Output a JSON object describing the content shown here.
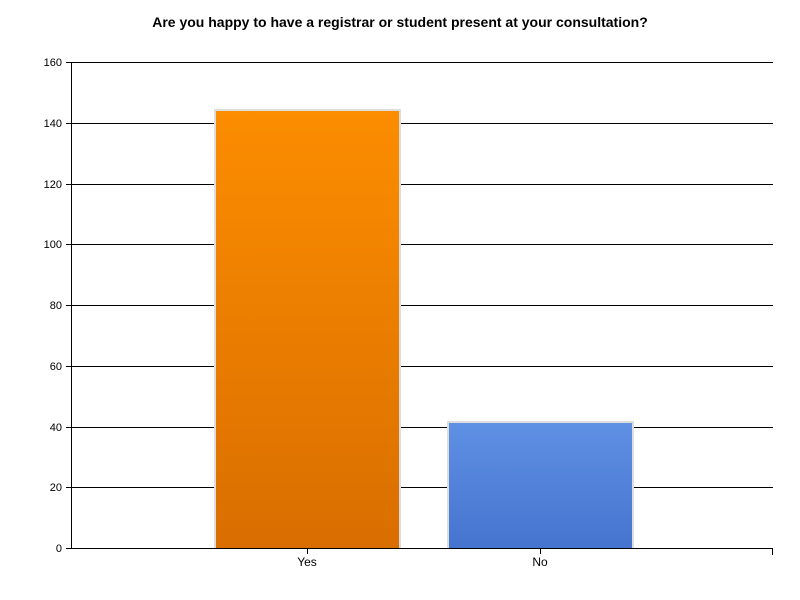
{
  "chart_data": {
    "type": "bar",
    "title": "Are you happy to have a registrar or student present at your consultation?",
    "categories": [
      "Yes",
      "No"
    ],
    "values": [
      145,
      42
    ],
    "series": [
      {
        "name": "Yes",
        "values": [
          145
        ]
      },
      {
        "name": "No",
        "values": [
          42
        ]
      }
    ],
    "xlabel": "",
    "ylabel": "",
    "ylim": [
      0,
      160
    ],
    "ytick_interval": 20,
    "yticks": [
      0,
      20,
      40,
      60,
      80,
      100,
      120,
      140,
      160
    ],
    "grid": true,
    "legend_position": "none",
    "colors": {
      "bar_gradients": [
        {
          "top": "#fc8d00",
          "bottom": "#d96e00"
        },
        {
          "top": "#5e90e4",
          "bottom": "#4574ce"
        }
      ],
      "bar_border": "#dddddd",
      "gridline": "#000000",
      "axis": "#000000",
      "text": "#000000",
      "background": "#ffffff"
    }
  }
}
